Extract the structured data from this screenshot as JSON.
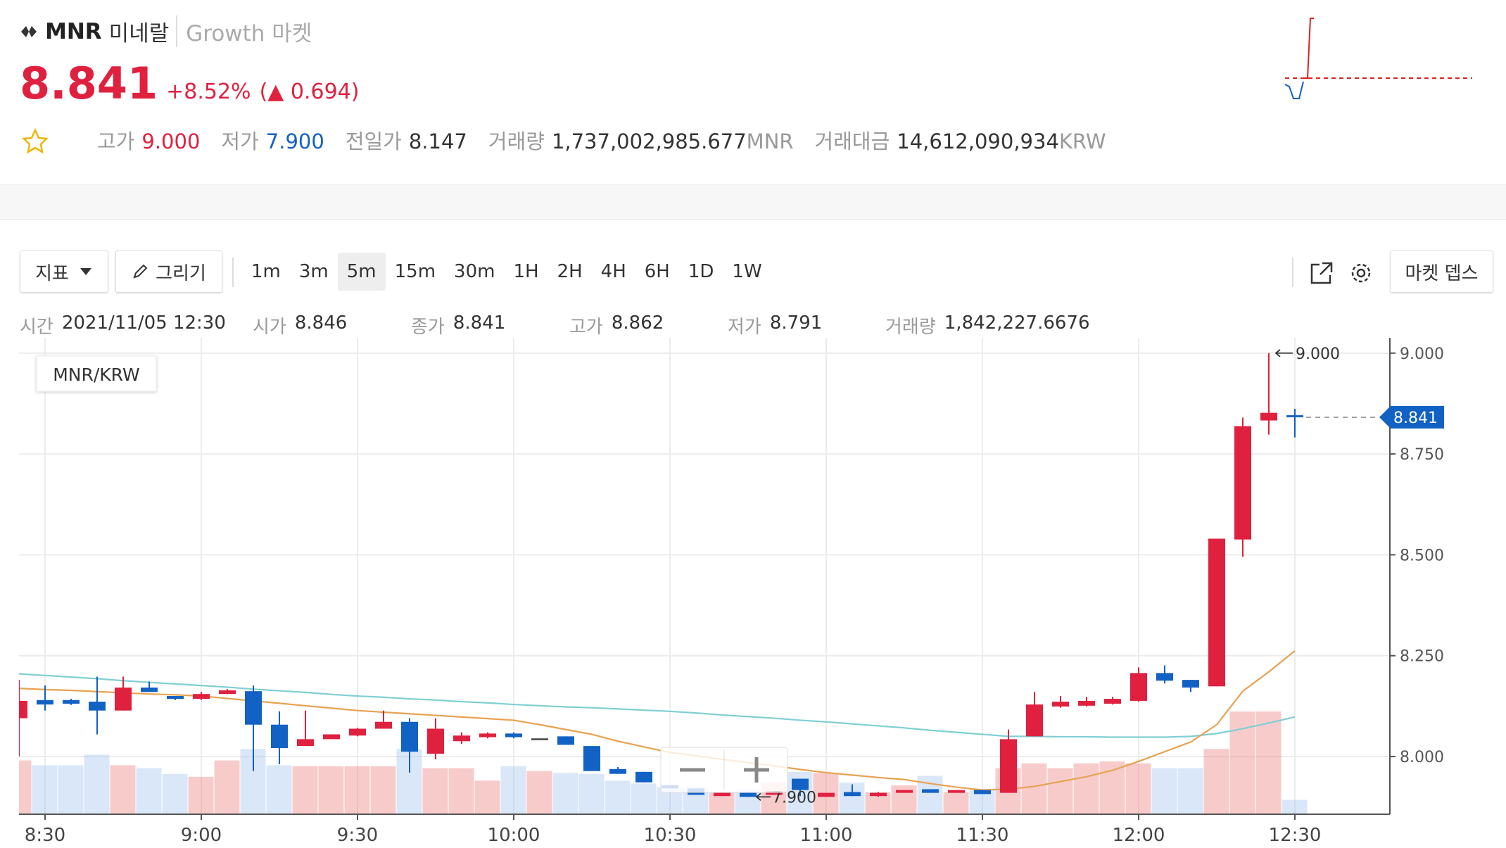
{
  "header": {
    "symbol": "MNR",
    "name": "미네랄",
    "market": "Growth 마켓",
    "price": "8.841",
    "change_pct": "+8.52%",
    "change": "(▲ 0.694)",
    "stats": [
      {
        "label": "고가",
        "value": "9.000"
      },
      {
        "label": "저가",
        "value": "7.900"
      },
      {
        "label": "전일가",
        "value": "8.147"
      },
      {
        "label": "거래량",
        "value": "1,737,002,985.677",
        "unit": "MNR"
      },
      {
        "label": "거래대금",
        "value": "14,612,090,934",
        "unit": "KRW"
      }
    ]
  },
  "toolbar": {
    "indicator": "지표",
    "draw": "그리기",
    "intervals": [
      "1m",
      "3m",
      "5m",
      "15m",
      "30m",
      "1H",
      "2H",
      "4H",
      "6H",
      "1D",
      "1W"
    ],
    "depth": "마켓 뎁스"
  },
  "info": [
    {
      "label": "시간",
      "value": "2021/11/05 12:30"
    },
    {
      "label": "시가",
      "value": "8.846"
    },
    {
      "label": "종가",
      "value": "8.841"
    },
    {
      "label": "고가",
      "value": "8.862"
    },
    {
      "label": "저가",
      "value": "8.791"
    },
    {
      "label": "거래량",
      "value": "1,842,227.6676"
    }
  ],
  "chart_data": {
    "type": "candlestick",
    "pair": "MNR/KRW",
    "up_color": "#e0203f",
    "down_color": "#1261c4",
    "categories": [
      null,
      "8:30",
      null,
      null,
      null,
      null,
      null,
      "9:00",
      null,
      null,
      null,
      null,
      null,
      "9:30",
      null,
      null,
      null,
      null,
      null,
      "10:00",
      null,
      null,
      null,
      null,
      null,
      "10:30",
      null,
      null,
      null,
      null,
      null,
      "11:00",
      null,
      null,
      null,
      null,
      null,
      "11:30",
      null,
      null,
      null,
      null,
      null,
      "12:00",
      null,
      null,
      null,
      null,
      null,
      "12:30"
    ],
    "open": [
      8.095,
      8.14,
      8.14,
      8.136,
      8.114,
      8.171,
      8.15,
      8.143,
      8.155,
      8.162,
      8.079,
      8.026,
      8.043,
      8.052,
      8.069,
      8.086,
      8.007,
      8.038,
      8.048,
      8.057,
      8.045,
      8.05,
      8.026,
      7.969,
      7.962,
      7.929,
      7.921,
      7.902,
      7.91,
      7.905,
      7.945,
      7.9,
      7.912,
      7.902,
      7.91,
      7.919,
      7.91,
      7.917,
      7.91,
      8.05,
      8.124,
      8.126,
      8.131,
      8.138,
      8.207,
      8.19,
      8.174,
      8.538,
      8.833,
      8.846
    ],
    "high": [
      8.19,
      8.176,
      8.143,
      8.198,
      8.198,
      8.186,
      8.15,
      8.16,
      8.167,
      8.176,
      8.112,
      8.114,
      8.055,
      8.071,
      8.114,
      8.095,
      8.095,
      8.06,
      8.06,
      8.06,
      8.045,
      8.05,
      8.026,
      7.974,
      7.962,
      7.929,
      7.921,
      7.91,
      7.91,
      7.914,
      7.945,
      7.91,
      7.931,
      7.912,
      7.917,
      7.919,
      7.917,
      7.917,
      8.067,
      8.16,
      8.15,
      8.148,
      8.148,
      8.221,
      8.226,
      8.19,
      8.54,
      8.84,
      9.0,
      8.862
    ],
    "low": [
      8.0,
      8.114,
      8.128,
      8.055,
      8.114,
      8.16,
      8.14,
      8.14,
      8.155,
      7.964,
      7.981,
      8.026,
      8.043,
      8.05,
      8.069,
      7.96,
      7.993,
      8.031,
      8.045,
      8.045,
      8.045,
      8.029,
      7.964,
      7.957,
      7.936,
      7.921,
      7.905,
      7.902,
      7.9,
      7.905,
      7.902,
      7.9,
      7.902,
      7.9,
      7.91,
      7.91,
      7.91,
      7.907,
      7.91,
      8.05,
      8.121,
      8.124,
      8.129,
      8.136,
      8.181,
      8.16,
      8.174,
      8.495,
      8.798,
      8.791
    ],
    "close": [
      8.138,
      8.129,
      8.131,
      8.114,
      8.171,
      8.16,
      8.143,
      8.155,
      8.164,
      8.079,
      8.021,
      8.043,
      8.055,
      8.069,
      8.086,
      8.012,
      8.069,
      8.052,
      8.057,
      8.048,
      8.045,
      8.029,
      7.964,
      7.957,
      7.936,
      7.921,
      7.905,
      7.91,
      7.9,
      7.914,
      7.917,
      7.91,
      7.902,
      7.91,
      7.917,
      7.91,
      7.917,
      7.907,
      8.043,
      8.129,
      8.136,
      8.138,
      8.143,
      8.207,
      8.188,
      8.171,
      8.54,
      8.819,
      8.852,
      8.841
    ],
    "volume": [
      6877000,
      6263000,
      6263000,
      7614000,
      6263000,
      5894000,
      5158000,
      4789000,
      6877000,
      8350000,
      6263000,
      6140000,
      6140000,
      6140000,
      6140000,
      8350000,
      5894000,
      5894000,
      4298000,
      6140000,
      5526000,
      5280000,
      5158000,
      4298000,
      3930000,
      3438000,
      3438000,
      2824000,
      3193000,
      4052000,
      5403000,
      5280000,
      4052000,
      2824000,
      3684000,
      4912000,
      2824000,
      3193000,
      5894000,
      6508000,
      5894000,
      6508000,
      6754000,
      6508000,
      5894000,
      5894000,
      8350000,
      13140000,
      13140000,
      1842227.6676
    ],
    "series": [
      {
        "color": "#7fcfd3",
        "values": [
          8.205,
          8.201,
          8.197,
          8.193,
          8.188,
          8.184,
          8.18,
          8.176,
          8.172,
          8.167,
          8.163,
          8.159,
          8.154,
          8.15,
          8.147,
          8.143,
          8.14,
          8.136,
          8.133,
          8.129,
          8.126,
          8.123,
          8.121,
          8.118,
          8.115,
          8.112,
          8.108,
          8.103,
          8.099,
          8.095,
          8.09,
          8.086,
          8.081,
          8.076,
          8.071,
          8.065,
          8.06,
          8.055,
          8.05,
          8.05,
          8.049,
          8.049,
          8.048,
          8.048,
          8.048,
          8.05,
          8.057,
          8.069,
          8.083,
          8.098
        ]
      },
      {
        "color": "#e8a24f",
        "values": [
          8.169,
          8.166,
          8.164,
          8.161,
          8.158,
          8.155,
          8.153,
          8.15,
          8.144,
          8.138,
          8.132,
          8.126,
          8.12,
          8.114,
          8.11,
          8.106,
          8.102,
          8.098,
          8.094,
          8.09,
          8.079,
          8.067,
          8.055,
          8.038,
          8.024,
          8.01,
          8.002,
          7.993,
          7.985,
          7.977,
          7.968,
          7.96,
          7.954,
          7.948,
          7.943,
          7.933,
          7.924,
          7.917,
          7.919,
          7.926,
          7.938,
          7.95,
          7.966,
          7.988,
          8.012,
          8.036,
          8.079,
          8.162,
          8.21,
          8.262
        ]
      }
    ],
    "ylim": [
      7.857,
      9.038
    ],
    "yticks": [
      {
        "value": 8,
        "label": "8.000"
      },
      {
        "value": 8.25,
        "label": "8.250"
      },
      {
        "value": 8.5,
        "label": "8.500"
      },
      {
        "value": 8.75,
        "label": "8.750"
      },
      {
        "value": 9,
        "label": "9.000"
      }
    ],
    "grid": true,
    "max_label": "9.000",
    "min_label": "7.900",
    "last_label": "8.841"
  }
}
